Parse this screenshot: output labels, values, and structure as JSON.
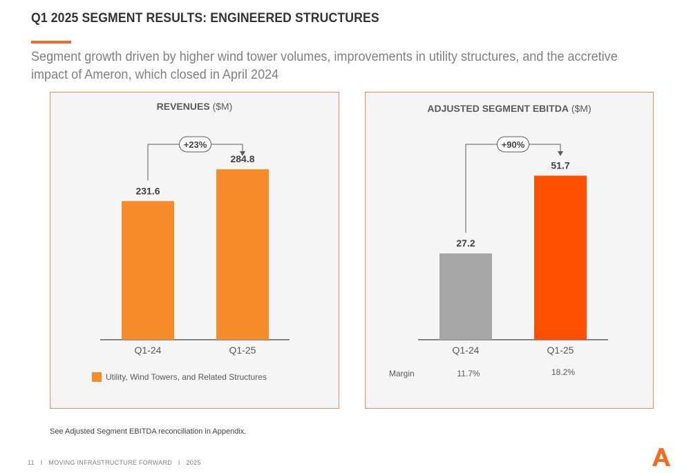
{
  "header": {
    "title": "Q1 2025 SEGMENT RESULTS: ENGINEERED STRUCTURES",
    "subtitle": "Segment growth driven by higher wind tower volumes, improvements in utility structures, and the accretive impact of Ameron, which closed in April 2024"
  },
  "colors": {
    "accent": "#f26b21",
    "revenue_bar": "#f68b2a",
    "ebitda_prior": "#a6a6a6",
    "ebitda_current": "#ff5000"
  },
  "chart_data": [
    {
      "type": "bar",
      "title_bold": "REVENUES",
      "title_unit": "($M)",
      "categories": [
        "Q1-24",
        "Q1-25"
      ],
      "values": [
        231.6,
        284.8
      ],
      "value_labels": [
        "231.6",
        "284.8"
      ],
      "change_label": "+23%",
      "legend": [
        "Utility, Wind Towers, and Related Structures"
      ],
      "ylim": [
        0,
        300
      ]
    },
    {
      "type": "bar",
      "title_bold": "ADJUSTED SEGMENT EBITDA",
      "title_unit": "($M)",
      "categories": [
        "Q1-24",
        "Q1-25"
      ],
      "values": [
        27.2,
        51.7
      ],
      "value_labels": [
        "27.2",
        "51.7"
      ],
      "change_label": "+90%",
      "margin_label": "Margin",
      "margins": [
        "11.7%",
        "18.2%"
      ],
      "ylim": [
        0,
        54.4
      ]
    }
  ],
  "footnote": "See Adjusted Segment EBITDA reconciliation in Appendix.",
  "footer": {
    "page_number": "11",
    "separator": "I",
    "tagline": "MOVING INFRASTRUCTURE FORWARD",
    "year": "2025"
  },
  "logo_icon": "arcosa-a-logo-icon"
}
